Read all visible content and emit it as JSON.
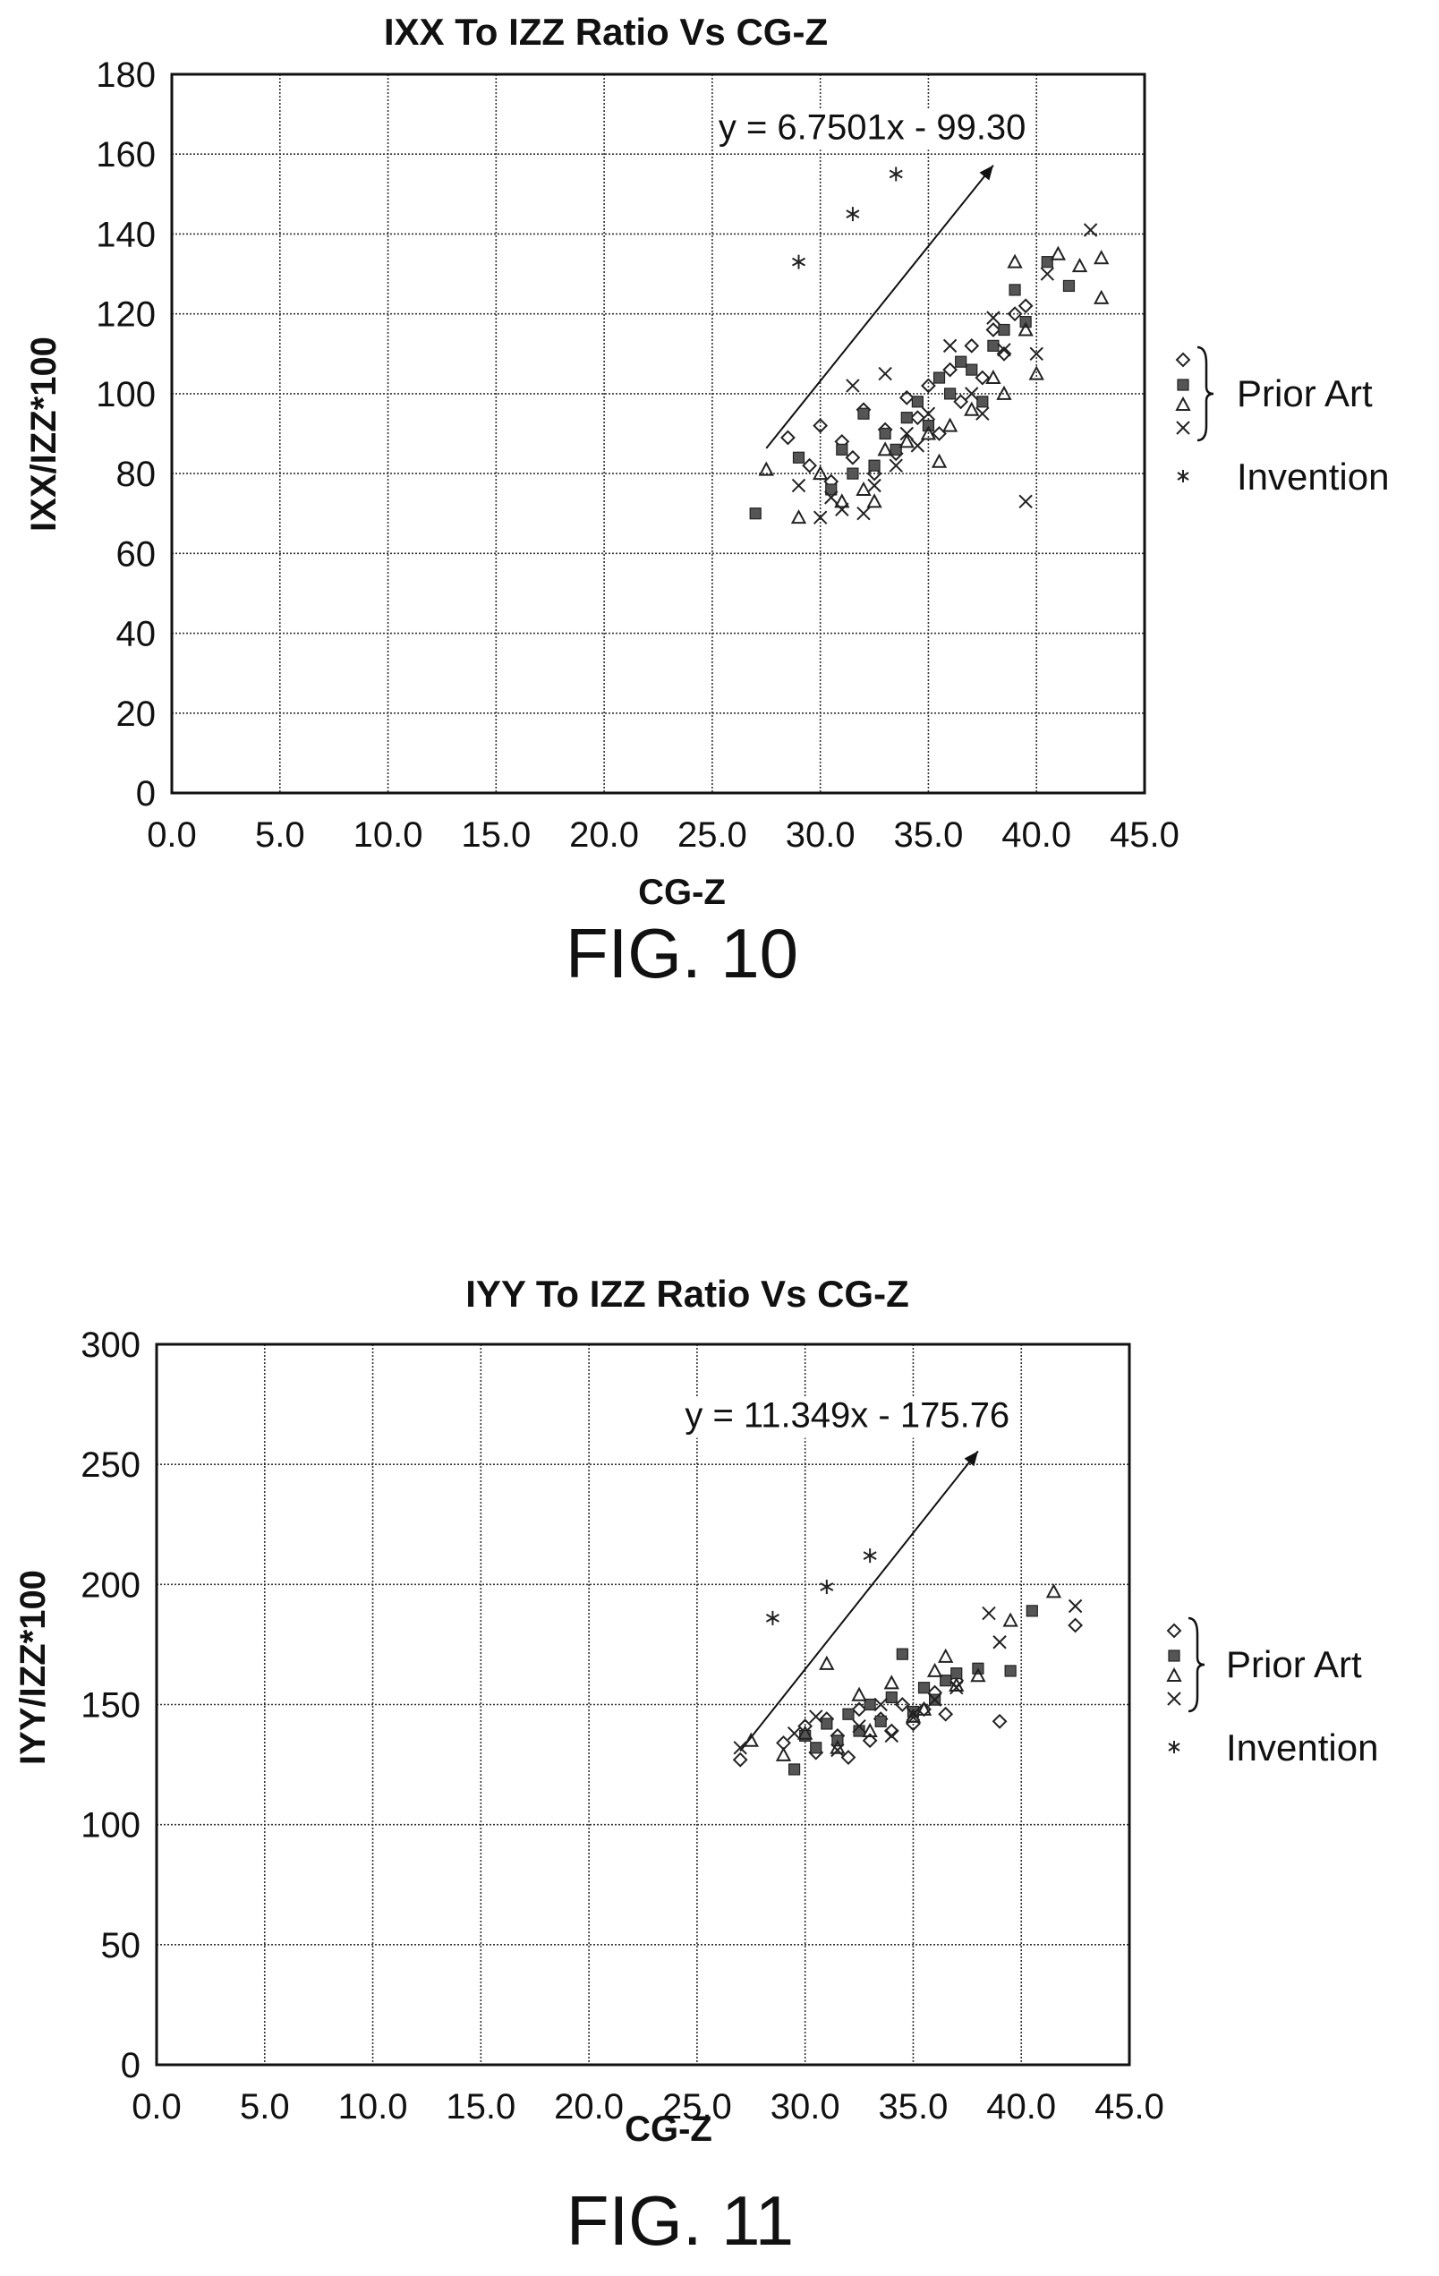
{
  "chart_data": [
    {
      "type": "scatter",
      "title": "IXX To IZZ Ratio Vs CG-Z",
      "xlabel": "CG-Z",
      "ylabel": "IXX/IZZ*100",
      "figure_label": "FIG. 10",
      "xlim": [
        0,
        45
      ],
      "ylim": [
        0,
        180
      ],
      "x_ticks": [
        "0.0",
        "5.0",
        "10.0",
        "15.0",
        "20.0",
        "25.0",
        "30.0",
        "35.0",
        "40.0",
        "45.0"
      ],
      "y_ticks": [
        "0",
        "20",
        "40",
        "60",
        "80",
        "100",
        "120",
        "140",
        "160",
        "180"
      ],
      "grid": true,
      "legend_placement": "right",
      "legend": {
        "group_label": "Prior Art",
        "invention_label": "Invention"
      },
      "trendline": {
        "label": "y = 6.7501x - 99.30",
        "slope": 6.7501,
        "intercept": -99.3,
        "x_range": [
          27.5,
          38
        ]
      },
      "series": [
        {
          "name": "Prior Art",
          "marker": "diamond",
          "x": [
            28.5,
            29.5,
            30.0,
            30.5,
            31.0,
            31.5,
            32.0,
            32.5,
            33.0,
            33.5,
            34.0,
            34.5,
            35.0,
            35.5,
            36.0,
            36.5,
            37.0,
            37.5,
            38.0,
            38.5,
            39.0,
            39.5
          ],
          "y": [
            89,
            82,
            92,
            78,
            88,
            84,
            96,
            80,
            91,
            85,
            99,
            94,
            102,
            90,
            106,
            98,
            112,
            104,
            116,
            110,
            120,
            122
          ]
        },
        {
          "name": "Prior Art",
          "marker": "square",
          "x": [
            27.0,
            29.0,
            30.5,
            31.0,
            31.5,
            32.0,
            32.5,
            33.0,
            33.5,
            34.0,
            34.5,
            35.0,
            35.5,
            36.0,
            36.5,
            37.0,
            37.5,
            38.0,
            38.5,
            39.0,
            39.5,
            40.5,
            41.5
          ],
          "y": [
            70,
            84,
            76,
            86,
            80,
            95,
            82,
            90,
            86,
            94,
            98,
            92,
            104,
            100,
            108,
            106,
            98,
            112,
            116,
            126,
            118,
            133,
            127
          ]
        },
        {
          "name": "Prior Art",
          "marker": "triangle",
          "x": [
            27.5,
            29.0,
            30.0,
            31.0,
            32.0,
            32.5,
            33.0,
            34.0,
            35.0,
            35.5,
            36.0,
            37.0,
            38.0,
            38.5,
            39.0,
            39.5,
            40.0,
            41.0,
            42.0,
            43.0,
            43.0
          ],
          "y": [
            81,
            69,
            80,
            73,
            76,
            73,
            86,
            88,
            90,
            83,
            92,
            96,
            104,
            100,
            133,
            116,
            105,
            135,
            132,
            134,
            124
          ]
        },
        {
          "name": "Prior Art",
          "marker": "x",
          "x": [
            29.0,
            30.0,
            30.5,
            31.0,
            31.5,
            32.0,
            32.5,
            33.0,
            33.5,
            34.0,
            34.5,
            35.0,
            36.0,
            37.0,
            37.5,
            38.0,
            38.5,
            39.5,
            40.0,
            40.5,
            42.5
          ],
          "y": [
            77,
            69,
            74,
            71,
            102,
            70,
            77,
            105,
            82,
            90,
            87,
            95,
            112,
            100,
            95,
            119,
            111,
            73,
            110,
            130,
            141
          ]
        },
        {
          "name": "Invention",
          "marker": "asterisk",
          "x": [
            29.0,
            31.5,
            33.5
          ],
          "y": [
            133,
            145,
            155
          ]
        }
      ]
    },
    {
      "type": "scatter",
      "title": "IYY To IZZ Ratio Vs CG-Z",
      "xlabel": "CG-Z",
      "ylabel": "IYY/IZZ*100",
      "figure_label": "FIG. 11",
      "xlim": [
        0,
        45
      ],
      "ylim": [
        0,
        300
      ],
      "x_ticks": [
        "0.0",
        "5.0",
        "10.0",
        "15.0",
        "20.0",
        "25.0",
        "30.0",
        "35.0",
        "40.0",
        "45.0"
      ],
      "y_ticks": [
        "0",
        "50",
        "100",
        "150",
        "200",
        "250",
        "300"
      ],
      "grid": true,
      "legend_placement": "right",
      "legend": {
        "group_label": "Prior Art",
        "invention_label": "Invention"
      },
      "trendline": {
        "label": "y = 11.349x - 175.76",
        "slope": 11.349,
        "intercept": -175.76,
        "x_range": [
          27,
          38
        ]
      },
      "series": [
        {
          "name": "Prior Art",
          "marker": "diamond",
          "x": [
            27.0,
            29.0,
            30.0,
            30.5,
            31.0,
            31.5,
            32.0,
            32.5,
            33.0,
            33.5,
            34.0,
            34.5,
            35.0,
            35.5,
            36.0,
            36.5,
            37.0,
            39.0,
            42.5
          ],
          "y": [
            127,
            134,
            141,
            130,
            144,
            137,
            128,
            148,
            135,
            144,
            139,
            150,
            142,
            148,
            155,
            146,
            160,
            143,
            183
          ]
        },
        {
          "name": "Prior Art",
          "marker": "square",
          "x": [
            29.5,
            30.0,
            30.5,
            31.0,
            31.5,
            32.0,
            32.5,
            33.0,
            33.5,
            34.0,
            34.5,
            35.0,
            35.5,
            36.0,
            36.5,
            37.0,
            38.0,
            39.5,
            40.5
          ],
          "y": [
            123,
            137,
            132,
            142,
            135,
            146,
            139,
            150,
            143,
            153,
            171,
            147,
            157,
            152,
            160,
            163,
            165,
            164,
            189
          ]
        },
        {
          "name": "Prior Art",
          "marker": "triangle",
          "x": [
            27.5,
            29.0,
            30.0,
            31.0,
            31.5,
            32.5,
            33.0,
            34.0,
            35.0,
            35.5,
            36.0,
            36.5,
            37.0,
            38.0,
            39.5,
            41.5
          ],
          "y": [
            135,
            129,
            138,
            167,
            132,
            154,
            139,
            159,
            145,
            148,
            164,
            170,
            158,
            162,
            185,
            197
          ]
        },
        {
          "name": "Prior Art",
          "marker": "x",
          "x": [
            27.0,
            29.5,
            30.5,
            31.5,
            32.5,
            33.5,
            34.0,
            35.0,
            36.0,
            37.0,
            38.5,
            39.0,
            42.5
          ],
          "y": [
            132,
            138,
            145,
            131,
            141,
            150,
            137,
            146,
            152,
            157,
            188,
            176,
            191
          ]
        },
        {
          "name": "Invention",
          "marker": "asterisk",
          "x": [
            28.5,
            31.0,
            33.0
          ],
          "y": [
            186,
            199,
            212
          ]
        }
      ]
    }
  ]
}
